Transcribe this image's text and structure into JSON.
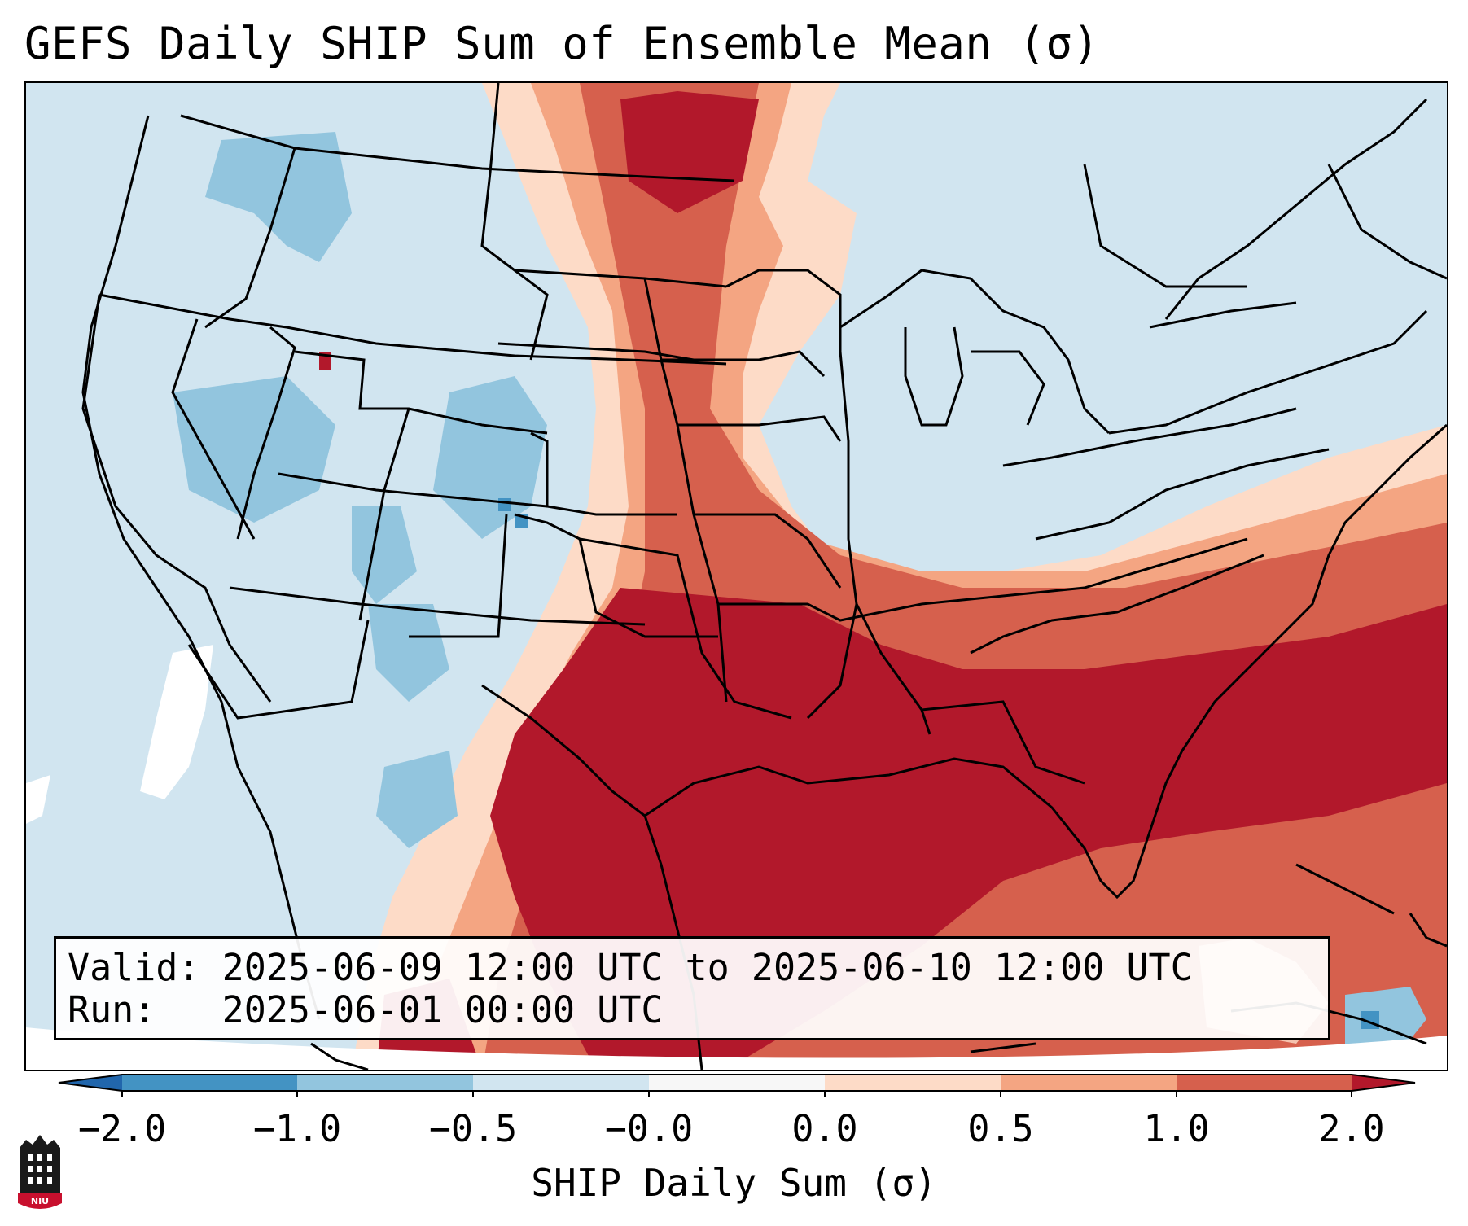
{
  "title": "GEFS Daily SHIP Sum of Ensemble Mean (σ)",
  "info": {
    "valid_label": "Valid:",
    "valid_value": "2025-06-09 12:00 UTC to 2025-06-10 12:00 UTC",
    "run_label": "Run:",
    "run_value": "2025-06-01 00:00 UTC"
  },
  "colorbar": {
    "label": "SHIP Daily Sum (σ)",
    "ticks": [
      "−2.0",
      "−1.0",
      "−0.5",
      "−0.0",
      "0.0",
      "0.5",
      "1.0",
      "2.0"
    ],
    "bins": [
      {
        "from": "−2.0",
        "to": "−1.0",
        "color": "#4393c3"
      },
      {
        "from": "−1.0",
        "to": "−0.5",
        "color": "#92c5de"
      },
      {
        "from": "−0.5",
        "to": "−0.0",
        "color": "#d1e5f0"
      },
      {
        "from": "−0.0",
        "to": "0.0",
        "color": "#f7f7f7"
      },
      {
        "from": "0.0",
        "to": "0.5",
        "color": "#fddbc7"
      },
      {
        "from": "0.5",
        "to": "1.0",
        "color": "#f4a582"
      },
      {
        "from": "1.0",
        "to": "2.0",
        "color": "#d6604d"
      }
    ],
    "extend_low_color": "#2166ac",
    "extend_high_color": "#b2182b"
  },
  "logo": {
    "text": "NIU",
    "name": "niu-logo"
  },
  "palette": {
    "neg_strong": "#4393c3",
    "neg_mid": "#92c5de",
    "neg_weak": "#d1e5f0",
    "neutral": "#f7f7f7",
    "pos_weak": "#fddbc7",
    "pos_mid": "#f4a582",
    "pos_strong": "#d6604d",
    "pos_extreme": "#b2182b"
  }
}
